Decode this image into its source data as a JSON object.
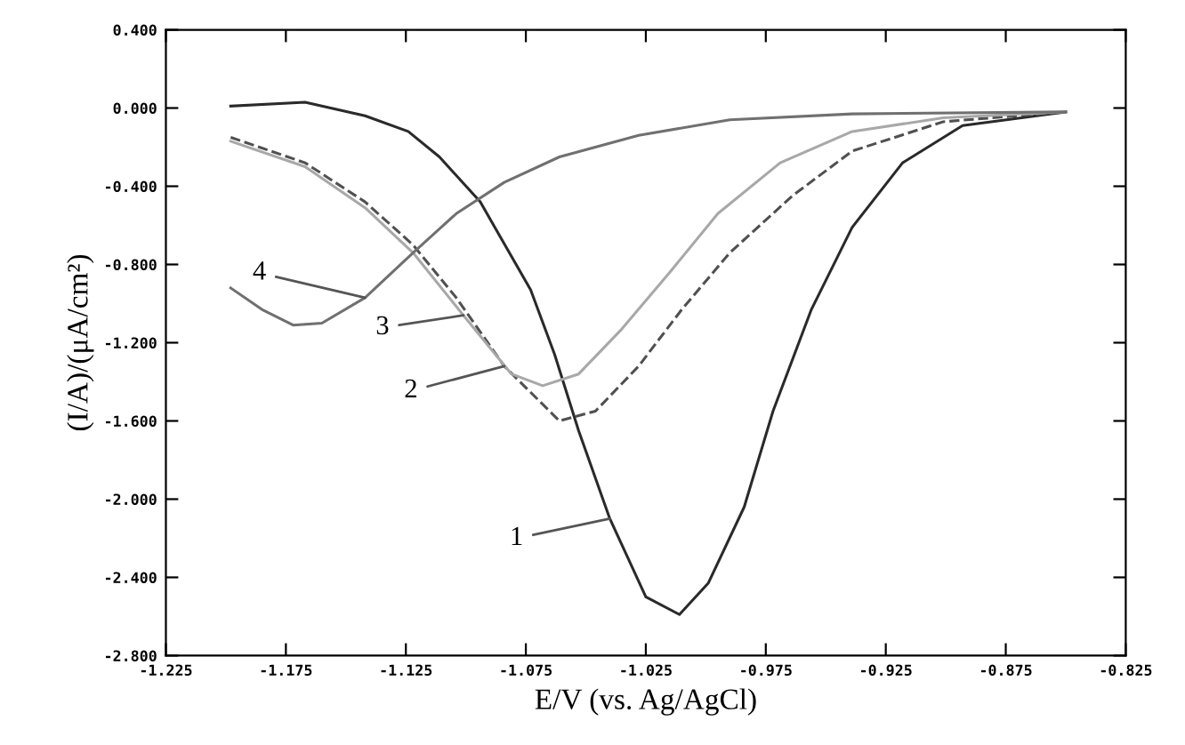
{
  "chart_data": {
    "type": "line",
    "xlabel": "E/V (vs. Ag/AgCl)",
    "ylabel": "(I/A)/(μA/cm²)",
    "xlim": [
      -1.225,
      -0.825
    ],
    "xticks": [
      {
        "value": -1.225,
        "label": "-1.225"
      },
      {
        "value": -1.175,
        "label": "-1.175"
      },
      {
        "value": -1.125,
        "label": "-1.125"
      },
      {
        "value": -1.075,
        "label": "-1.075"
      },
      {
        "value": -1.025,
        "label": "-1.025"
      },
      {
        "value": -0.975,
        "label": "-0.975"
      },
      {
        "value": -0.925,
        "label": "-0.925"
      },
      {
        "value": -0.875,
        "label": "-0.875"
      },
      {
        "value": -0.825,
        "label": "-0.825"
      }
    ],
    "ylim": [
      -2.8,
      0.4
    ],
    "yticks": [
      {
        "value": 0.4,
        "label": "0.400"
      },
      {
        "value": 0.0,
        "label": "0.000"
      },
      {
        "value": -0.4,
        "label": "-0.400"
      },
      {
        "value": -0.8,
        "label": "-0.800"
      },
      {
        "value": -1.2,
        "label": "-1.200"
      },
      {
        "value": -1.6,
        "label": "-1.600"
      },
      {
        "value": -2.0,
        "label": "-2.000"
      },
      {
        "value": -2.4,
        "label": "-2.400"
      },
      {
        "value": -2.8,
        "label": "-2.800"
      }
    ],
    "grid": false,
    "legend": false,
    "series": [
      {
        "color": "#2a2a2a",
        "line_style": "solid",
        "x": [
          -1.198,
          -1.167,
          -1.142,
          -1.124,
          -1.111,
          -1.094,
          -1.073,
          -1.063,
          -1.053,
          -1.04,
          -1.025,
          -1.011,
          -0.999,
          -0.984,
          -0.972,
          -0.956,
          -0.939,
          -0.918,
          -0.893,
          -0.85
        ],
        "values": [
          0.01,
          0.03,
          -0.04,
          -0.12,
          -0.25,
          -0.48,
          -0.93,
          -1.26,
          -1.65,
          -2.1,
          -2.5,
          -2.59,
          -2.43,
          -2.04,
          -1.55,
          -1.03,
          -0.61,
          -0.28,
          -0.09,
          -0.02
        ]
      },
      {
        "color": "#505050",
        "line_style": "dashed",
        "x": [
          -1.198,
          -1.167,
          -1.142,
          -1.122,
          -1.104,
          -1.084,
          -1.061,
          -1.046,
          -1.028,
          -1.01,
          -0.99,
          -0.964,
          -0.939,
          -0.901,
          -0.85
        ],
        "values": [
          -0.15,
          -0.28,
          -0.48,
          -0.7,
          -0.97,
          -1.32,
          -1.6,
          -1.55,
          -1.32,
          -1.03,
          -0.74,
          -0.45,
          -0.22,
          -0.07,
          -0.02
        ]
      },
      {
        "color": "#a8a8a8",
        "line_style": "solid",
        "x": [
          -1.198,
          -1.167,
          -1.142,
          -1.122,
          -1.101,
          -1.081,
          -1.068,
          -1.053,
          -1.035,
          -1.015,
          -0.995,
          -0.969,
          -0.939,
          -0.901,
          -0.85
        ],
        "values": [
          -0.17,
          -0.3,
          -0.51,
          -0.74,
          -1.06,
          -1.36,
          -1.42,
          -1.36,
          -1.13,
          -0.84,
          -0.54,
          -0.28,
          -0.12,
          -0.05,
          -0.02
        ]
      },
      {
        "color": "#707070",
        "line_style": "solid",
        "x": [
          -1.198,
          -1.185,
          -1.172,
          -1.16,
          -1.142,
          -1.122,
          -1.104,
          -1.084,
          -1.061,
          -1.028,
          -0.99,
          -0.939,
          -0.85
        ],
        "values": [
          -0.92,
          -1.03,
          -1.11,
          -1.1,
          -0.97,
          -0.74,
          -0.54,
          -0.38,
          -0.25,
          -0.14,
          -0.06,
          -0.03,
          -0.02
        ]
      }
    ],
    "annotations": [
      {
        "text": "1",
        "x": -1.04,
        "y": -2.1
      },
      {
        "text": "2",
        "x": -1.084,
        "y": -1.32
      },
      {
        "text": "3",
        "x": -1.101,
        "y": -1.06
      },
      {
        "text": "4",
        "x": -1.142,
        "y": -0.97
      }
    ]
  }
}
